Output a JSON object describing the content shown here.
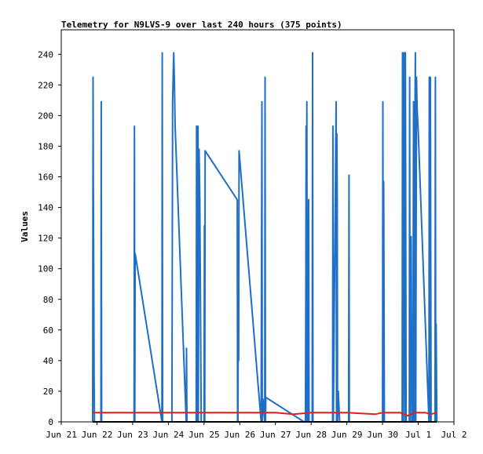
{
  "chart_data": {
    "type": "line",
    "title": "Telemetry for N9LVS-9 over last 240 hours (375 points)",
    "ylabel": "Values",
    "xlabel": "",
    "ylim": [
      0,
      256
    ],
    "yticks": [
      0,
      20,
      40,
      60,
      80,
      100,
      120,
      140,
      160,
      180,
      200,
      220,
      240
    ],
    "xlim": [
      0,
      11
    ],
    "xticks": [
      {
        "x": 0,
        "label": "Jun 21"
      },
      {
        "x": 1,
        "label": "Jun 22"
      },
      {
        "x": 2,
        "label": "Jun 23"
      },
      {
        "x": 3,
        "label": "Jun 24"
      },
      {
        "x": 4,
        "label": "Jun 25"
      },
      {
        "x": 5,
        "label": "Jun 26"
      },
      {
        "x": 6,
        "label": "Jun 27"
      },
      {
        "x": 7,
        "label": "Jun 28"
      },
      {
        "x": 8,
        "label": "Jun 29"
      },
      {
        "x": 9,
        "label": "Jun 30"
      },
      {
        "x": 10,
        "label": "Jul 1"
      },
      {
        "x": 11,
        "label": "Jul 2"
      }
    ],
    "grid": false,
    "series": [
      {
        "color": "#1f6fc7",
        "points": [
          [
            0.88,
            0
          ],
          [
            0.89,
            225
          ],
          [
            0.9,
            147
          ],
          [
            0.91,
            88
          ],
          [
            0.92,
            30
          ],
          [
            0.93,
            0
          ],
          [
            1.11,
            0
          ],
          [
            1.12,
            209
          ],
          [
            1.13,
            0
          ],
          [
            2.04,
            0
          ],
          [
            2.05,
            193
          ],
          [
            2.06,
            0
          ],
          [
            2.07,
            110
          ],
          [
            2.82,
            0
          ],
          [
            2.83,
            241
          ],
          [
            2.84,
            0
          ],
          [
            2.85,
            0
          ],
          [
            3.1,
            0
          ],
          [
            3.12,
            209
          ],
          [
            3.14,
            231
          ],
          [
            3.15,
            241
          ],
          [
            3.17,
            221
          ],
          [
            3.19,
            193
          ],
          [
            3.5,
            0
          ],
          [
            3.51,
            48
          ],
          [
            3.52,
            0
          ],
          [
            3.78,
            0
          ],
          [
            3.79,
            193
          ],
          [
            3.8,
            0
          ],
          [
            3.83,
            193
          ],
          [
            3.84,
            0
          ],
          [
            3.86,
            178
          ],
          [
            3.88,
            145
          ],
          [
            3.9,
            75
          ],
          [
            3.92,
            0
          ],
          [
            4.0,
            0
          ],
          [
            4.01,
            128
          ],
          [
            4.02,
            0
          ],
          [
            4.03,
            177
          ],
          [
            4.93,
            145
          ],
          [
            4.94,
            0
          ],
          [
            4.95,
            0
          ],
          [
            4.96,
            88
          ],
          [
            4.97,
            40
          ],
          [
            4.98,
            177
          ],
          [
            5.6,
            0
          ],
          [
            5.62,
            209
          ],
          [
            5.63,
            0
          ],
          [
            5.65,
            15
          ],
          [
            5.7,
            0
          ],
          [
            5.71,
            225
          ],
          [
            5.72,
            0
          ],
          [
            5.73,
            16
          ],
          [
            6.8,
            0
          ],
          [
            6.84,
            0
          ],
          [
            6.85,
            80
          ],
          [
            6.86,
            193
          ],
          [
            6.87,
            0
          ],
          [
            6.88,
            209
          ],
          [
            6.89,
            20
          ],
          [
            6.9,
            0
          ],
          [
            6.93,
            145
          ],
          [
            6.94,
            0
          ],
          [
            7.03,
            0
          ],
          [
            7.04,
            241
          ],
          [
            7.05,
            0
          ],
          [
            7.6,
            0
          ],
          [
            7.61,
            193
          ],
          [
            7.62,
            0
          ],
          [
            7.7,
            209
          ],
          [
            7.71,
            0
          ],
          [
            7.72,
            188
          ],
          [
            7.73,
            145
          ],
          [
            7.74,
            0
          ],
          [
            7.76,
            20
          ],
          [
            7.8,
            0
          ],
          [
            8.05,
            0
          ],
          [
            8.06,
            161
          ],
          [
            8.07,
            0
          ],
          [
            9.0,
            0
          ],
          [
            9.01,
            209
          ],
          [
            9.02,
            0
          ],
          [
            9.03,
            157
          ],
          [
            9.04,
            95
          ],
          [
            9.05,
            0
          ],
          [
            9.55,
            0
          ],
          [
            9.56,
            241
          ],
          [
            9.57,
            0
          ],
          [
            9.6,
            241
          ],
          [
            9.62,
            0
          ],
          [
            9.64,
            241
          ],
          [
            9.66,
            0
          ],
          [
            9.75,
            0
          ],
          [
            9.76,
            225
          ],
          [
            9.77,
            0
          ],
          [
            9.8,
            121
          ],
          [
            9.82,
            0
          ],
          [
            9.85,
            0
          ],
          [
            9.87,
            209
          ],
          [
            9.88,
            0
          ],
          [
            9.9,
            0
          ],
          [
            9.91,
            210
          ],
          [
            9.92,
            241
          ],
          [
            9.93,
            0
          ],
          [
            9.95,
            225
          ],
          [
            9.97,
            204
          ],
          [
            10.0,
            190
          ],
          [
            10.3,
            0
          ],
          [
            10.31,
            225
          ],
          [
            10.32,
            0
          ],
          [
            10.34,
            225
          ],
          [
            10.36,
            0
          ],
          [
            10.47,
            0
          ],
          [
            10.48,
            225
          ],
          [
            10.49,
            0
          ],
          [
            10.5,
            64
          ],
          [
            10.52,
            0
          ]
        ]
      },
      {
        "color": "#e02020",
        "points": [
          [
            0.88,
            6
          ],
          [
            6.0,
            6
          ],
          [
            6.5,
            5
          ],
          [
            7.0,
            6
          ],
          [
            8.0,
            6
          ],
          [
            8.8,
            5
          ],
          [
            9.0,
            6
          ],
          [
            9.5,
            6
          ],
          [
            9.7,
            4
          ],
          [
            9.9,
            6
          ],
          [
            10.2,
            6
          ],
          [
            10.35,
            5
          ],
          [
            10.52,
            6
          ]
        ]
      },
      {
        "color": "#000000",
        "points": [
          [
            0.88,
            0
          ],
          [
            10.52,
            0
          ]
        ]
      }
    ]
  }
}
